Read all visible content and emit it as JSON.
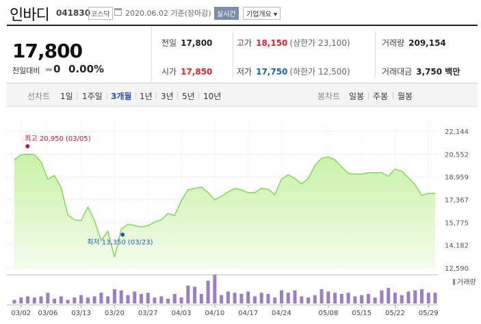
{
  "header": {
    "name": "인바디",
    "code": "041830",
    "market": "코스닥",
    "date": "2020.06.02 기준(장마감)",
    "realtime_btn": "실시간",
    "company_btn": "기업개요 ▾"
  },
  "summary": {
    "price": "17,800",
    "change_label": "전일대비",
    "change_value": "0",
    "change_pct": "0.00%",
    "prev_close": {
      "label": "전일",
      "value": "17,800"
    },
    "high": {
      "label": "고가",
      "value": "18,150",
      "extra": "(상한가 23,100)"
    },
    "volume": {
      "label": "거래량",
      "value": "209,154"
    },
    "open": {
      "label": "시가",
      "value": "17,850"
    },
    "low": {
      "label": "저가",
      "value": "17,750",
      "extra": "(하한가 12,500)"
    },
    "amount": {
      "label": "거래대금",
      "value": "3,750 백만"
    }
  },
  "period_bar": {
    "line_label": "선차트",
    "line_items": [
      "1일",
      "1주일",
      "3개월",
      "1년",
      "3년",
      "5년",
      "10년"
    ],
    "active": "3개월",
    "candle_label": "봉차트",
    "candle_items": [
      "일봉",
      "주봉",
      "월봉"
    ]
  },
  "colors": {
    "line": "#7ed957",
    "fill": "#dcf7c4",
    "volume": "#9a7fc6",
    "high": "#c8102e",
    "low": "#1b5fb7"
  },
  "chart_data": {
    "type": "area",
    "y_ticks": [
      "22,144",
      "20,552",
      "18,959",
      "17,367",
      "15,775",
      "14,182",
      "12,590"
    ],
    "ylim": [
      12590,
      22144
    ],
    "x_ticks": [
      "03/02",
      "03/06",
      "03/13",
      "03/20",
      "03/27",
      "04/03",
      "04/10",
      "04/17",
      "04/24",
      "05/08",
      "05/15",
      "05/22",
      "05/29"
    ],
    "x_tick_index": [
      1,
      5,
      10,
      15,
      20,
      25,
      30,
      35,
      40,
      47,
      52,
      57,
      62
    ],
    "high_annotation": "최고 20,950 (03/05)",
    "low_annotation": "최저 13,350 (03/23)",
    "high_index": 3,
    "low_index": 16,
    "volume_legend": "거래량",
    "price_series": [
      20150,
      20500,
      20550,
      20500,
      20000,
      18800,
      19050,
      18200,
      16300,
      15950,
      15900,
      16850,
      15900,
      14500,
      15150,
      13350,
      15300,
      15650,
      15550,
      15450,
      15550,
      15800,
      15950,
      16400,
      16250,
      17300,
      18050,
      18150,
      18250,
      17850,
      17350,
      17600,
      17900,
      18150,
      18050,
      17850,
      17850,
      18150,
      18100,
      17700,
      18800,
      19100,
      18850,
      18450,
      18850,
      19750,
      20250,
      20350,
      20150,
      19650,
      19200,
      19150,
      19150,
      19250,
      19250,
      19250,
      19000,
      19500,
      19350,
      18900,
      18400,
      17650,
      17800,
      17800
    ],
    "volume_series": [
      3,
      5,
      6,
      5,
      6,
      9,
      4,
      6,
      3,
      5,
      7,
      5,
      6,
      9,
      6,
      12,
      11,
      7,
      10,
      8,
      9,
      5,
      6,
      4,
      8,
      5,
      15,
      14,
      8,
      19,
      24,
      7,
      10,
      9,
      8,
      10,
      6,
      9,
      8,
      5,
      11,
      9,
      11,
      6,
      5,
      7,
      12,
      10,
      9,
      8,
      9,
      6,
      7,
      8,
      5,
      11,
      13,
      9,
      7,
      10,
      11,
      12,
      9,
      9
    ]
  }
}
